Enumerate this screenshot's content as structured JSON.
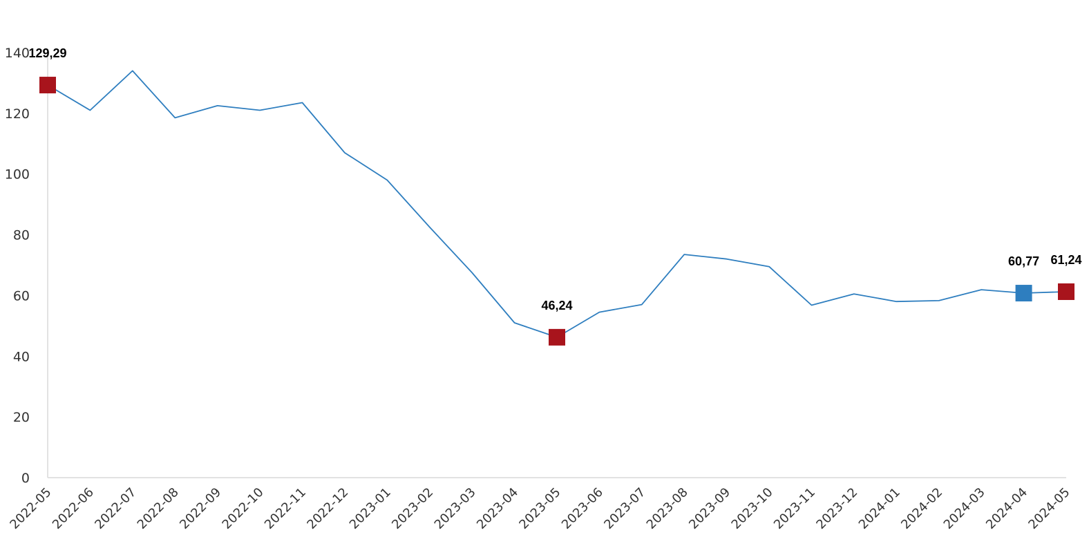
{
  "chart_data": {
    "type": "line",
    "title": "",
    "xlabel": "",
    "ylabel": "",
    "ylim": [
      0,
      140
    ],
    "yticks": [
      0,
      20,
      40,
      60,
      80,
      100,
      120,
      140
    ],
    "grid": false,
    "legend": "none",
    "categories": [
      "2022-05",
      "2022-06",
      "2022-07",
      "2022-08",
      "2022-09",
      "2022-10",
      "2022-11",
      "2022-12",
      "2023-01",
      "2023-02",
      "2023-03",
      "2023-04",
      "2023-05",
      "2023-06",
      "2023-07",
      "2023-08",
      "2023-09",
      "2023-10",
      "2023-11",
      "2023-12",
      "2024-01",
      "2024-02",
      "2024-03",
      "2024-04",
      "2024-05"
    ],
    "series": [
      {
        "values": [
          129.29,
          121.0,
          134.0,
          118.5,
          122.5,
          121.0,
          123.5,
          107.0,
          98.0,
          82.5,
          67.5,
          51.0,
          46.24,
          54.5,
          57.0,
          73.5,
          72.0,
          69.5,
          56.8,
          60.5,
          58.0,
          58.3,
          61.9,
          60.77,
          61.24
        ],
        "color": "#2e7ebf"
      }
    ],
    "markers": [
      {
        "category": "2022-05",
        "value": 129.29,
        "label": "129,29",
        "color": "#a8141c"
      },
      {
        "category": "2023-05",
        "value": 46.24,
        "label": "46,24",
        "color": "#a8141c"
      },
      {
        "category": "2024-04",
        "value": 60.77,
        "label": "60,77",
        "color": "#2e7ebf"
      },
      {
        "category": "2024-05",
        "value": 61.24,
        "label": "61,24",
        "color": "#a8141c"
      }
    ],
    "axis_color": "#d9d9d9"
  }
}
